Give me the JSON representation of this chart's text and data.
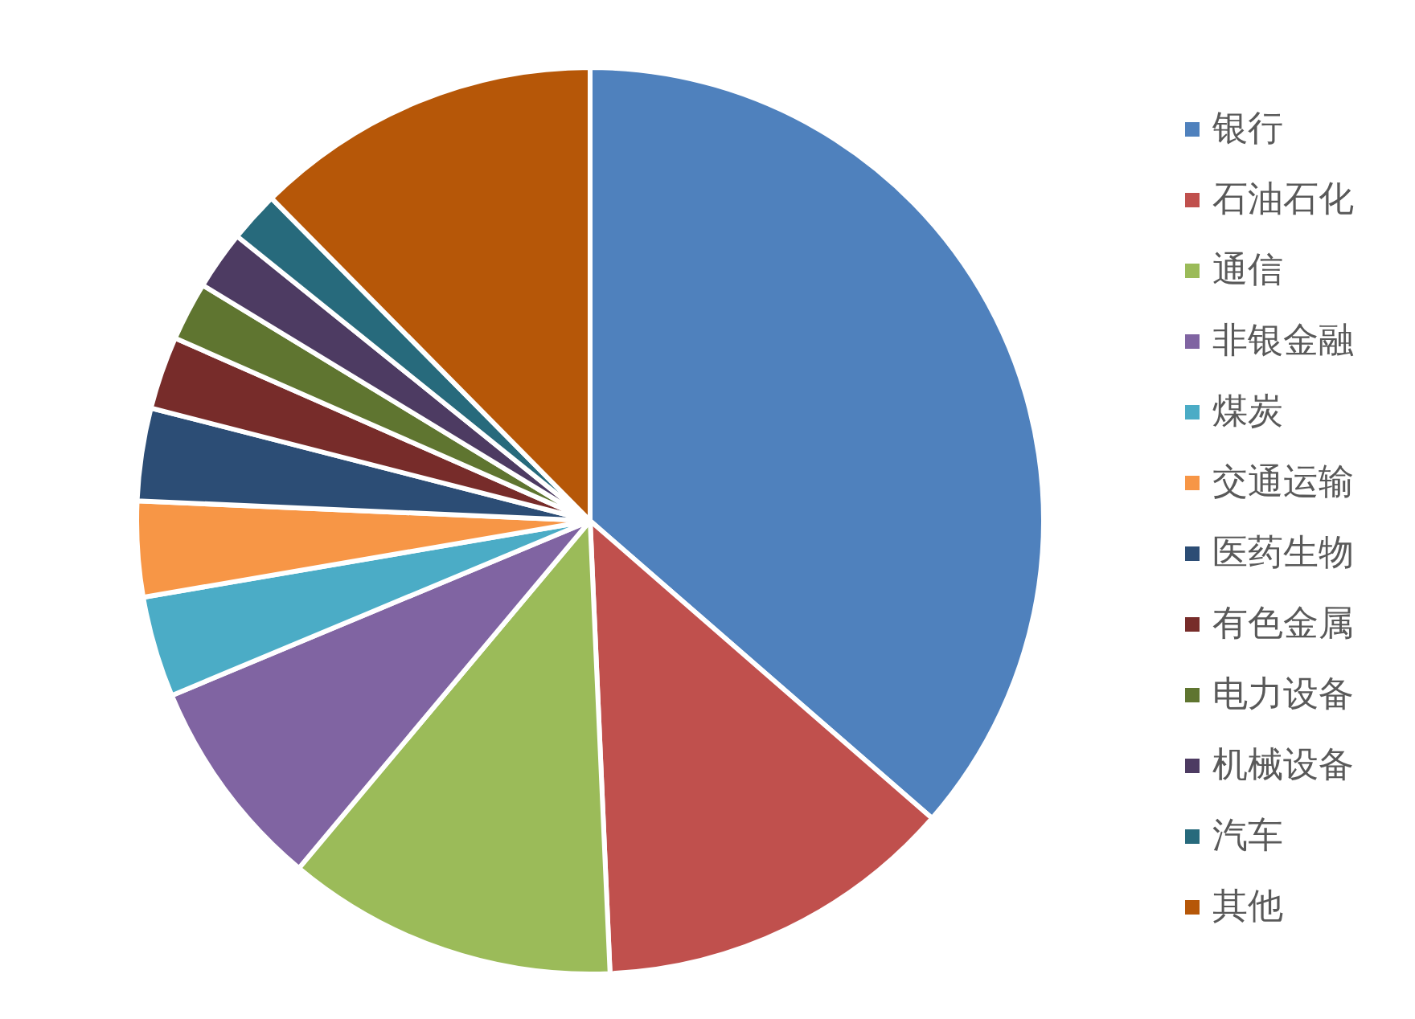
{
  "chart_data": {
    "type": "pie",
    "categories": [
      "银行",
      "石油石化",
      "通信",
      "非银金融",
      "煤炭",
      "交通运输",
      "医药生物",
      "有色金属",
      "电力设备",
      "机械设备",
      "汽车",
      "其他"
    ],
    "values": [
      36.4,
      12.9,
      11.8,
      7.6,
      3.6,
      3.4,
      3.3,
      2.6,
      2.1,
      2.1,
      1.8,
      12.4
    ],
    "colors": [
      "#4f81bd",
      "#c0504d",
      "#9bbb59",
      "#8064a2",
      "#4bacc6",
      "#f79646",
      "#2c4d75",
      "#772c2a",
      "#5f7530",
      "#4d3b62",
      "#276a7c",
      "#b65708"
    ],
    "legend": "right"
  }
}
